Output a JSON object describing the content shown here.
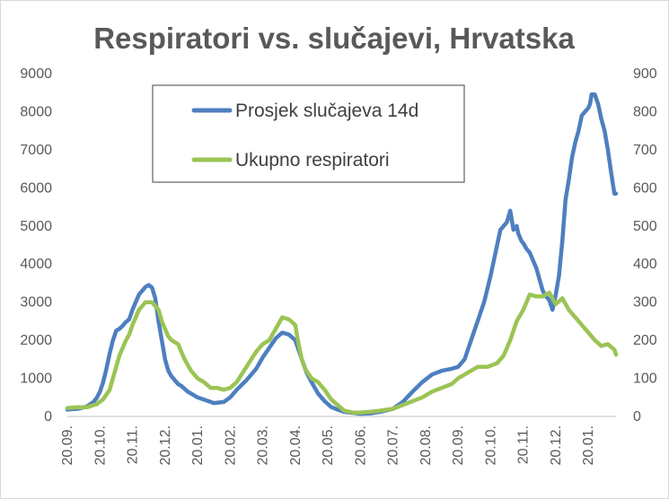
{
  "chart_data": {
    "type": "line",
    "title": "Respiratori vs. slučajevi, Hrvatska",
    "x_tick_labels": [
      "20.09.",
      "20.10.",
      "20.11.",
      "20.12.",
      "20.01.",
      "20.02.",
      "20.03.",
      "20.04.",
      "20.05.",
      "20.06.",
      "20.07.",
      "20.08.",
      "20.09.",
      "20.10.",
      "20.11.",
      "20.12.",
      "20.01."
    ],
    "x_range": [
      0,
      16.85
    ],
    "y_left": {
      "ticks": [
        0,
        1000,
        2000,
        3000,
        4000,
        5000,
        6000,
        7000,
        8000,
        9000
      ],
      "range": [
        0,
        9000
      ]
    },
    "y_right": {
      "ticks": [
        0,
        100,
        200,
        300,
        400,
        500,
        600,
        700,
        800,
        900
      ],
      "range": [
        0,
        900
      ]
    },
    "grid": false,
    "legend": {
      "position": "top-left-inside"
    },
    "series": [
      {
        "name": "Prosjek slučajeva 14d",
        "axis": "left",
        "color": "#4e7fbf",
        "x": [
          0,
          0.3,
          0.6,
          0.8,
          0.9,
          1.0,
          1.1,
          1.2,
          1.3,
          1.4,
          1.5,
          1.6,
          1.7,
          1.8,
          1.9,
          2.0,
          2.1,
          2.2,
          2.3,
          2.4,
          2.5,
          2.6,
          2.7,
          2.75,
          2.8,
          2.9,
          3.0,
          3.1,
          3.2,
          3.3,
          3.4,
          3.5,
          3.7,
          4.0,
          4.5,
          4.8,
          5.0,
          5.2,
          5.5,
          5.8,
          6.0,
          6.2,
          6.4,
          6.6,
          6.8,
          7.0,
          7.2,
          7.35,
          7.5,
          7.7,
          7.9,
          8.1,
          8.3,
          8.5,
          8.7,
          9.0,
          9.3,
          9.6,
          10.0,
          10.3,
          10.6,
          10.9,
          11.2,
          11.5,
          11.8,
          12.0,
          12.2,
          12.4,
          12.6,
          12.8,
          13.0,
          13.1,
          13.2,
          13.3,
          13.4,
          13.5,
          13.6,
          13.7,
          13.8,
          13.85,
          13.9,
          13.95,
          14.0,
          14.1,
          14.2,
          14.3,
          14.4,
          14.5,
          14.6,
          14.7,
          14.8,
          14.9,
          15.0,
          15.1,
          15.2,
          15.3,
          15.4,
          15.5,
          15.6,
          15.7,
          15.8,
          15.9,
          16.0,
          16.05,
          16.1,
          16.2,
          16.3,
          16.4,
          16.5,
          16.6,
          16.7,
          16.8,
          16.85
        ],
        "y": [
          180,
          200,
          260,
          380,
          480,
          650,
          900,
          1250,
          1650,
          2000,
          2250,
          2300,
          2380,
          2480,
          2550,
          2800,
          3000,
          3200,
          3300,
          3400,
          3450,
          3380,
          3100,
          2800,
          2500,
          2000,
          1500,
          1200,
          1050,
          950,
          850,
          800,
          650,
          500,
          350,
          380,
          500,
          700,
          950,
          1250,
          1550,
          1800,
          2050,
          2200,
          2150,
          2000,
          1500,
          1150,
          900,
          600,
          400,
          250,
          180,
          120,
          100,
          70,
          80,
          120,
          200,
          380,
          650,
          900,
          1100,
          1200,
          1250,
          1300,
          1500,
          2000,
          2500,
          3000,
          3700,
          4100,
          4500,
          4900,
          5000,
          5100,
          5400,
          4900,
          5000,
          4800,
          4700,
          4600,
          4550,
          4400,
          4300,
          4100,
          3900,
          3600,
          3300,
          3150,
          3050,
          2800,
          3200,
          3700,
          4600,
          5700,
          6200,
          6800,
          7200,
          7500,
          7900,
          8000,
          8100,
          8200,
          8450,
          8450,
          8200,
          7800,
          7500,
          7000,
          6400,
          5850,
          5850
        ]
      },
      {
        "name": "Ukupno respiratori",
        "axis": "right",
        "color": "#9bc454",
        "x": [
          0,
          0.3,
          0.6,
          0.9,
          1.1,
          1.3,
          1.5,
          1.6,
          1.8,
          1.9,
          2.0,
          2.2,
          2.4,
          2.6,
          2.7,
          2.8,
          2.9,
          3.0,
          3.1,
          3.2,
          3.4,
          3.6,
          3.8,
          4.0,
          4.2,
          4.4,
          4.6,
          4.8,
          5.0,
          5.2,
          5.5,
          5.8,
          6.0,
          6.2,
          6.4,
          6.6,
          6.8,
          7.0,
          7.1,
          7.2,
          7.3,
          7.5,
          7.7,
          7.9,
          8.1,
          8.3,
          8.5,
          8.8,
          9.0,
          9.3,
          9.6,
          10.0,
          10.3,
          10.6,
          10.9,
          11.2,
          11.5,
          11.8,
          12.0,
          12.3,
          12.6,
          12.9,
          13.2,
          13.4,
          13.6,
          13.8,
          14.0,
          14.2,
          14.4,
          14.6,
          14.8,
          15.0,
          15.2,
          15.4,
          15.6,
          15.8,
          16.0,
          16.2,
          16.4,
          16.6,
          16.8,
          16.85
        ],
        "y": [
          22,
          24,
          24,
          32,
          45,
          70,
          130,
          160,
          200,
          215,
          240,
          280,
          300,
          300,
          290,
          280,
          250,
          230,
          210,
          200,
          190,
          150,
          120,
          100,
          90,
          75,
          75,
          70,
          75,
          90,
          130,
          170,
          190,
          200,
          230,
          260,
          255,
          240,
          190,
          150,
          125,
          100,
          90,
          70,
          45,
          30,
          15,
          10,
          10,
          12,
          15,
          20,
          30,
          40,
          50,
          65,
          75,
          85,
          100,
          115,
          130,
          130,
          140,
          160,
          200,
          250,
          280,
          320,
          315,
          315,
          325,
          295,
          310,
          280,
          260,
          240,
          220,
          200,
          185,
          190,
          175,
          162
        ]
      }
    ]
  }
}
